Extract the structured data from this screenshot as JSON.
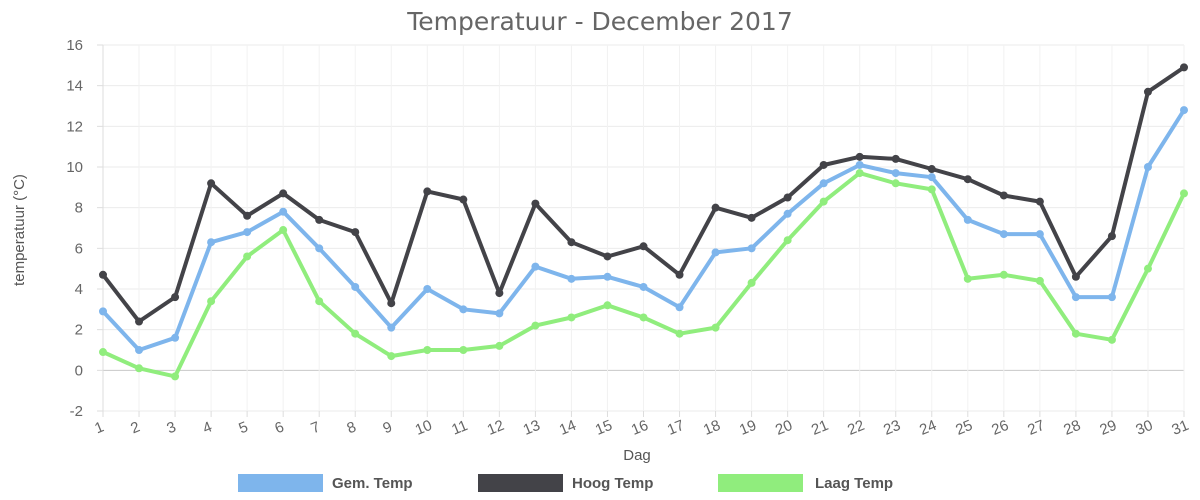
{
  "chart_data": {
    "type": "line",
    "title": "Temperatuur - December 2017",
    "xlabel": "Dag",
    "ylabel": "temperatuur (°C)",
    "ylim": [
      -2,
      16
    ],
    "y_ticks": [
      "-2",
      "0",
      "2",
      "4",
      "6",
      "8",
      "10",
      "12",
      "14",
      "16"
    ],
    "categories": [
      "1",
      "2",
      "3",
      "4",
      "5",
      "6",
      "7",
      "8",
      "9",
      "10",
      "11",
      "12",
      "13",
      "14",
      "15",
      "16",
      "17",
      "18",
      "19",
      "20",
      "21",
      "22",
      "23",
      "24",
      "25",
      "26",
      "27",
      "28",
      "29",
      "30",
      "31"
    ],
    "grid": true,
    "legend_position": "bottom",
    "series": [
      {
        "name": "Gem. Temp",
        "color": "#7eb5ec",
        "values": [
          2.9,
          1.0,
          1.6,
          6.3,
          6.8,
          7.8,
          6.0,
          4.1,
          2.1,
          4.0,
          3.0,
          2.8,
          5.1,
          4.5,
          4.6,
          4.1,
          3.1,
          5.8,
          6.0,
          7.7,
          9.2,
          10.1,
          9.7,
          9.5,
          7.4,
          6.7,
          6.7,
          3.6,
          3.6,
          10.0,
          12.8
        ]
      },
      {
        "name": "Hoog Temp",
        "color": "#434348",
        "values": [
          4.7,
          2.4,
          3.6,
          9.2,
          7.6,
          8.7,
          7.4,
          6.8,
          3.3,
          8.8,
          8.4,
          3.8,
          8.2,
          6.3,
          5.6,
          6.1,
          4.7,
          8.0,
          7.5,
          8.5,
          10.1,
          10.5,
          10.4,
          9.9,
          9.4,
          8.6,
          8.3,
          4.6,
          6.6,
          13.7,
          14.9
        ]
      },
      {
        "name": "Laag Temp",
        "color": "#90ed7d",
        "values": [
          0.9,
          0.1,
          -0.3,
          3.4,
          5.6,
          6.9,
          3.4,
          1.8,
          0.7,
          1.0,
          1.0,
          1.2,
          2.2,
          2.6,
          3.2,
          2.6,
          1.8,
          2.1,
          4.3,
          6.4,
          8.3,
          9.7,
          9.2,
          8.9,
          4.5,
          4.7,
          4.4,
          1.8,
          1.5,
          5.0,
          8.7
        ]
      }
    ]
  }
}
